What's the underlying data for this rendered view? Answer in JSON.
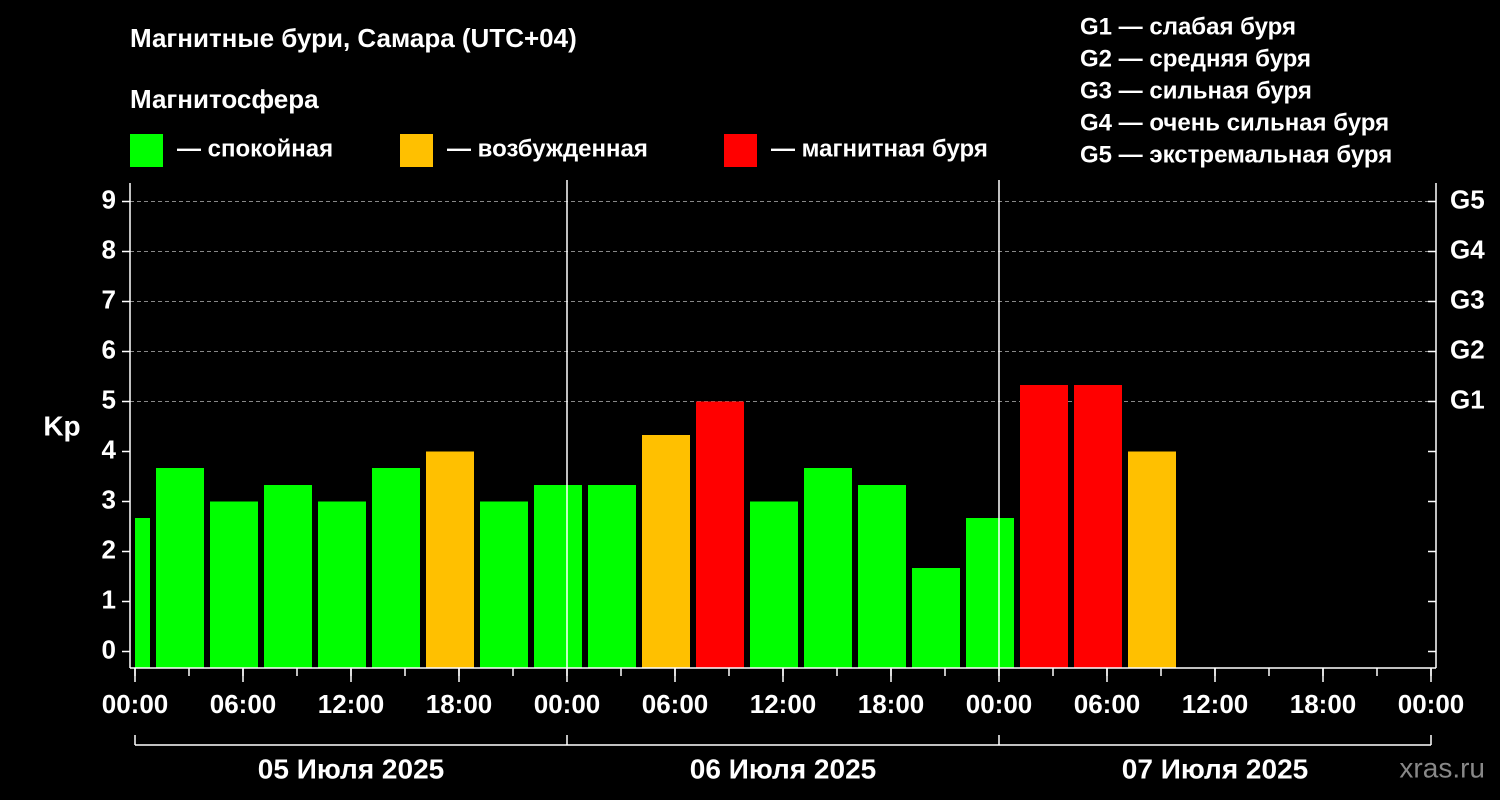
{
  "chart_data": {
    "type": "bar",
    "title": "Магнитные бури, Самара (UTC+04)",
    "subtitle": "Магнитосфера",
    "y_label": "Kp",
    "legend": [
      {
        "label": "— спокойная",
        "color": "#00ff00"
      },
      {
        "label": "— возбужденная",
        "color": "#ffc000"
      },
      {
        "label": "— магнитная буря",
        "color": "#ff0000"
      }
    ],
    "storm_scale": [
      "G1 — слабая буря",
      "G2 — средняя буря",
      "G3 — сильная буря",
      "G4 — очень сильная буря",
      "G5 — экстремальная буря"
    ],
    "x": [
      "2025-07-04T22:00",
      "2025-07-05T01:00",
      "2025-07-05T04:00",
      "2025-07-05T07:00",
      "2025-07-05T10:00",
      "2025-07-05T13:00",
      "2025-07-05T16:00",
      "2025-07-05T19:00",
      "2025-07-05T22:00",
      "2025-07-06T01:00",
      "2025-07-06T04:00",
      "2025-07-06T07:00",
      "2025-07-06T10:00",
      "2025-07-06T13:00",
      "2025-07-06T16:00",
      "2025-07-06T19:00",
      "2025-07-06T22:00",
      "2025-07-07T01:00",
      "2025-07-07T04:00",
      "2025-07-07T07:00"
    ],
    "values": [
      2.67,
      3.67,
      3,
      3.33,
      3,
      3.67,
      4,
      3,
      3.33,
      3.33,
      4.33,
      5,
      3,
      3.67,
      3.33,
      1.67,
      2.67,
      5.33,
      5.33,
      4
    ],
    "colors": [
      "#00ff00",
      "#00ff00",
      "#00ff00",
      "#00ff00",
      "#00ff00",
      "#00ff00",
      "#ffc000",
      "#00ff00",
      "#00ff00",
      "#00ff00",
      "#ffc000",
      "#ff0000",
      "#00ff00",
      "#00ff00",
      "#00ff00",
      "#00ff00",
      "#00ff00",
      "#ff0000",
      "#ff0000",
      "#ffc000"
    ],
    "bar_hours": 3,
    "xlim": [
      "2025-07-05T00:00",
      "2025-07-08T00:00"
    ],
    "xticks": [
      {
        "value": "2025-07-05T00:00",
        "label": "00:00"
      },
      {
        "value": "2025-07-05T06:00",
        "label": "06:00"
      },
      {
        "value": "2025-07-05T12:00",
        "label": "12:00"
      },
      {
        "value": "2025-07-05T18:00",
        "label": "18:00"
      },
      {
        "value": "2025-07-06T00:00",
        "label": "00:00"
      },
      {
        "value": "2025-07-06T06:00",
        "label": "06:00"
      },
      {
        "value": "2025-07-06T12:00",
        "label": "12:00"
      },
      {
        "value": "2025-07-06T18:00",
        "label": "18:00"
      },
      {
        "value": "2025-07-07T00:00",
        "label": "00:00"
      },
      {
        "value": "2025-07-07T06:00",
        "label": "06:00"
      },
      {
        "value": "2025-07-07T12:00",
        "label": "12:00"
      },
      {
        "value": "2025-07-07T18:00",
        "label": "18:00"
      },
      {
        "value": "2025-07-08T00:00",
        "label": "00:00"
      }
    ],
    "days": [
      "05 Июля 2025",
      "06 Июля 2025",
      "07 Июля 2025"
    ],
    "ylim": [
      -0.33,
      9.37
    ],
    "yticks": [
      0,
      1,
      2,
      3,
      4,
      5,
      6,
      7,
      8,
      9
    ],
    "y2ticks": [
      {
        "value": 5,
        "label": "G1"
      },
      {
        "value": 6,
        "label": "G2"
      },
      {
        "value": 7,
        "label": "G3"
      },
      {
        "value": 8,
        "label": "G4"
      },
      {
        "value": 9,
        "label": "G5"
      }
    ],
    "grid": true,
    "watermark": "xras.ru"
  }
}
